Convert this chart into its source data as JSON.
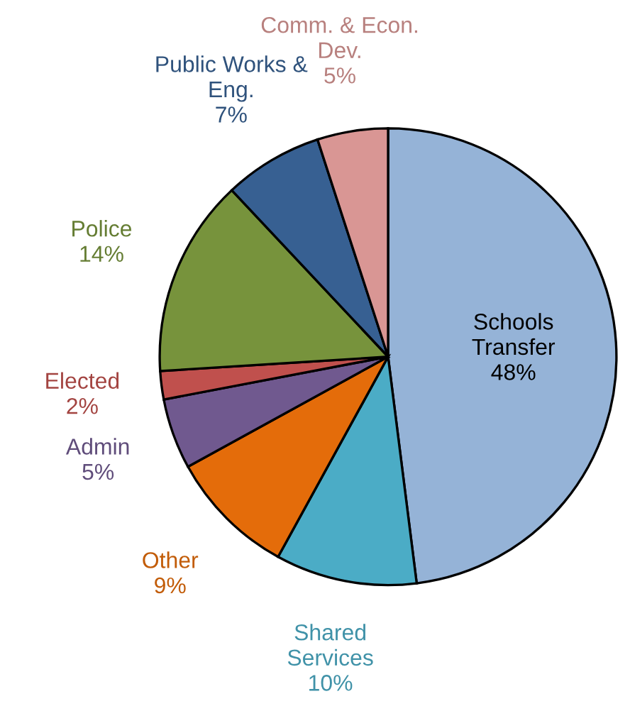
{
  "chart_data": {
    "type": "pie",
    "categories": [
      "Schools\nTransfer",
      "Shared\nServices",
      "Other",
      "Admin",
      "Elected",
      "Police",
      "Public Works &\nEng.",
      "Comm. & Econ.\nDev."
    ],
    "values": [
      48,
      10,
      9,
      5,
      2,
      14,
      7,
      5
    ],
    "value_labels": [
      "48%",
      "10%",
      "9%",
      "5%",
      "2%",
      "14%",
      "7%",
      "5%"
    ],
    "colors": [
      "#95b3d7",
      "#4bacc6",
      "#e46c0a",
      "#70598f",
      "#c0504d",
      "#77933c",
      "#376092",
      "#d99694"
    ],
    "legend": false
  }
}
